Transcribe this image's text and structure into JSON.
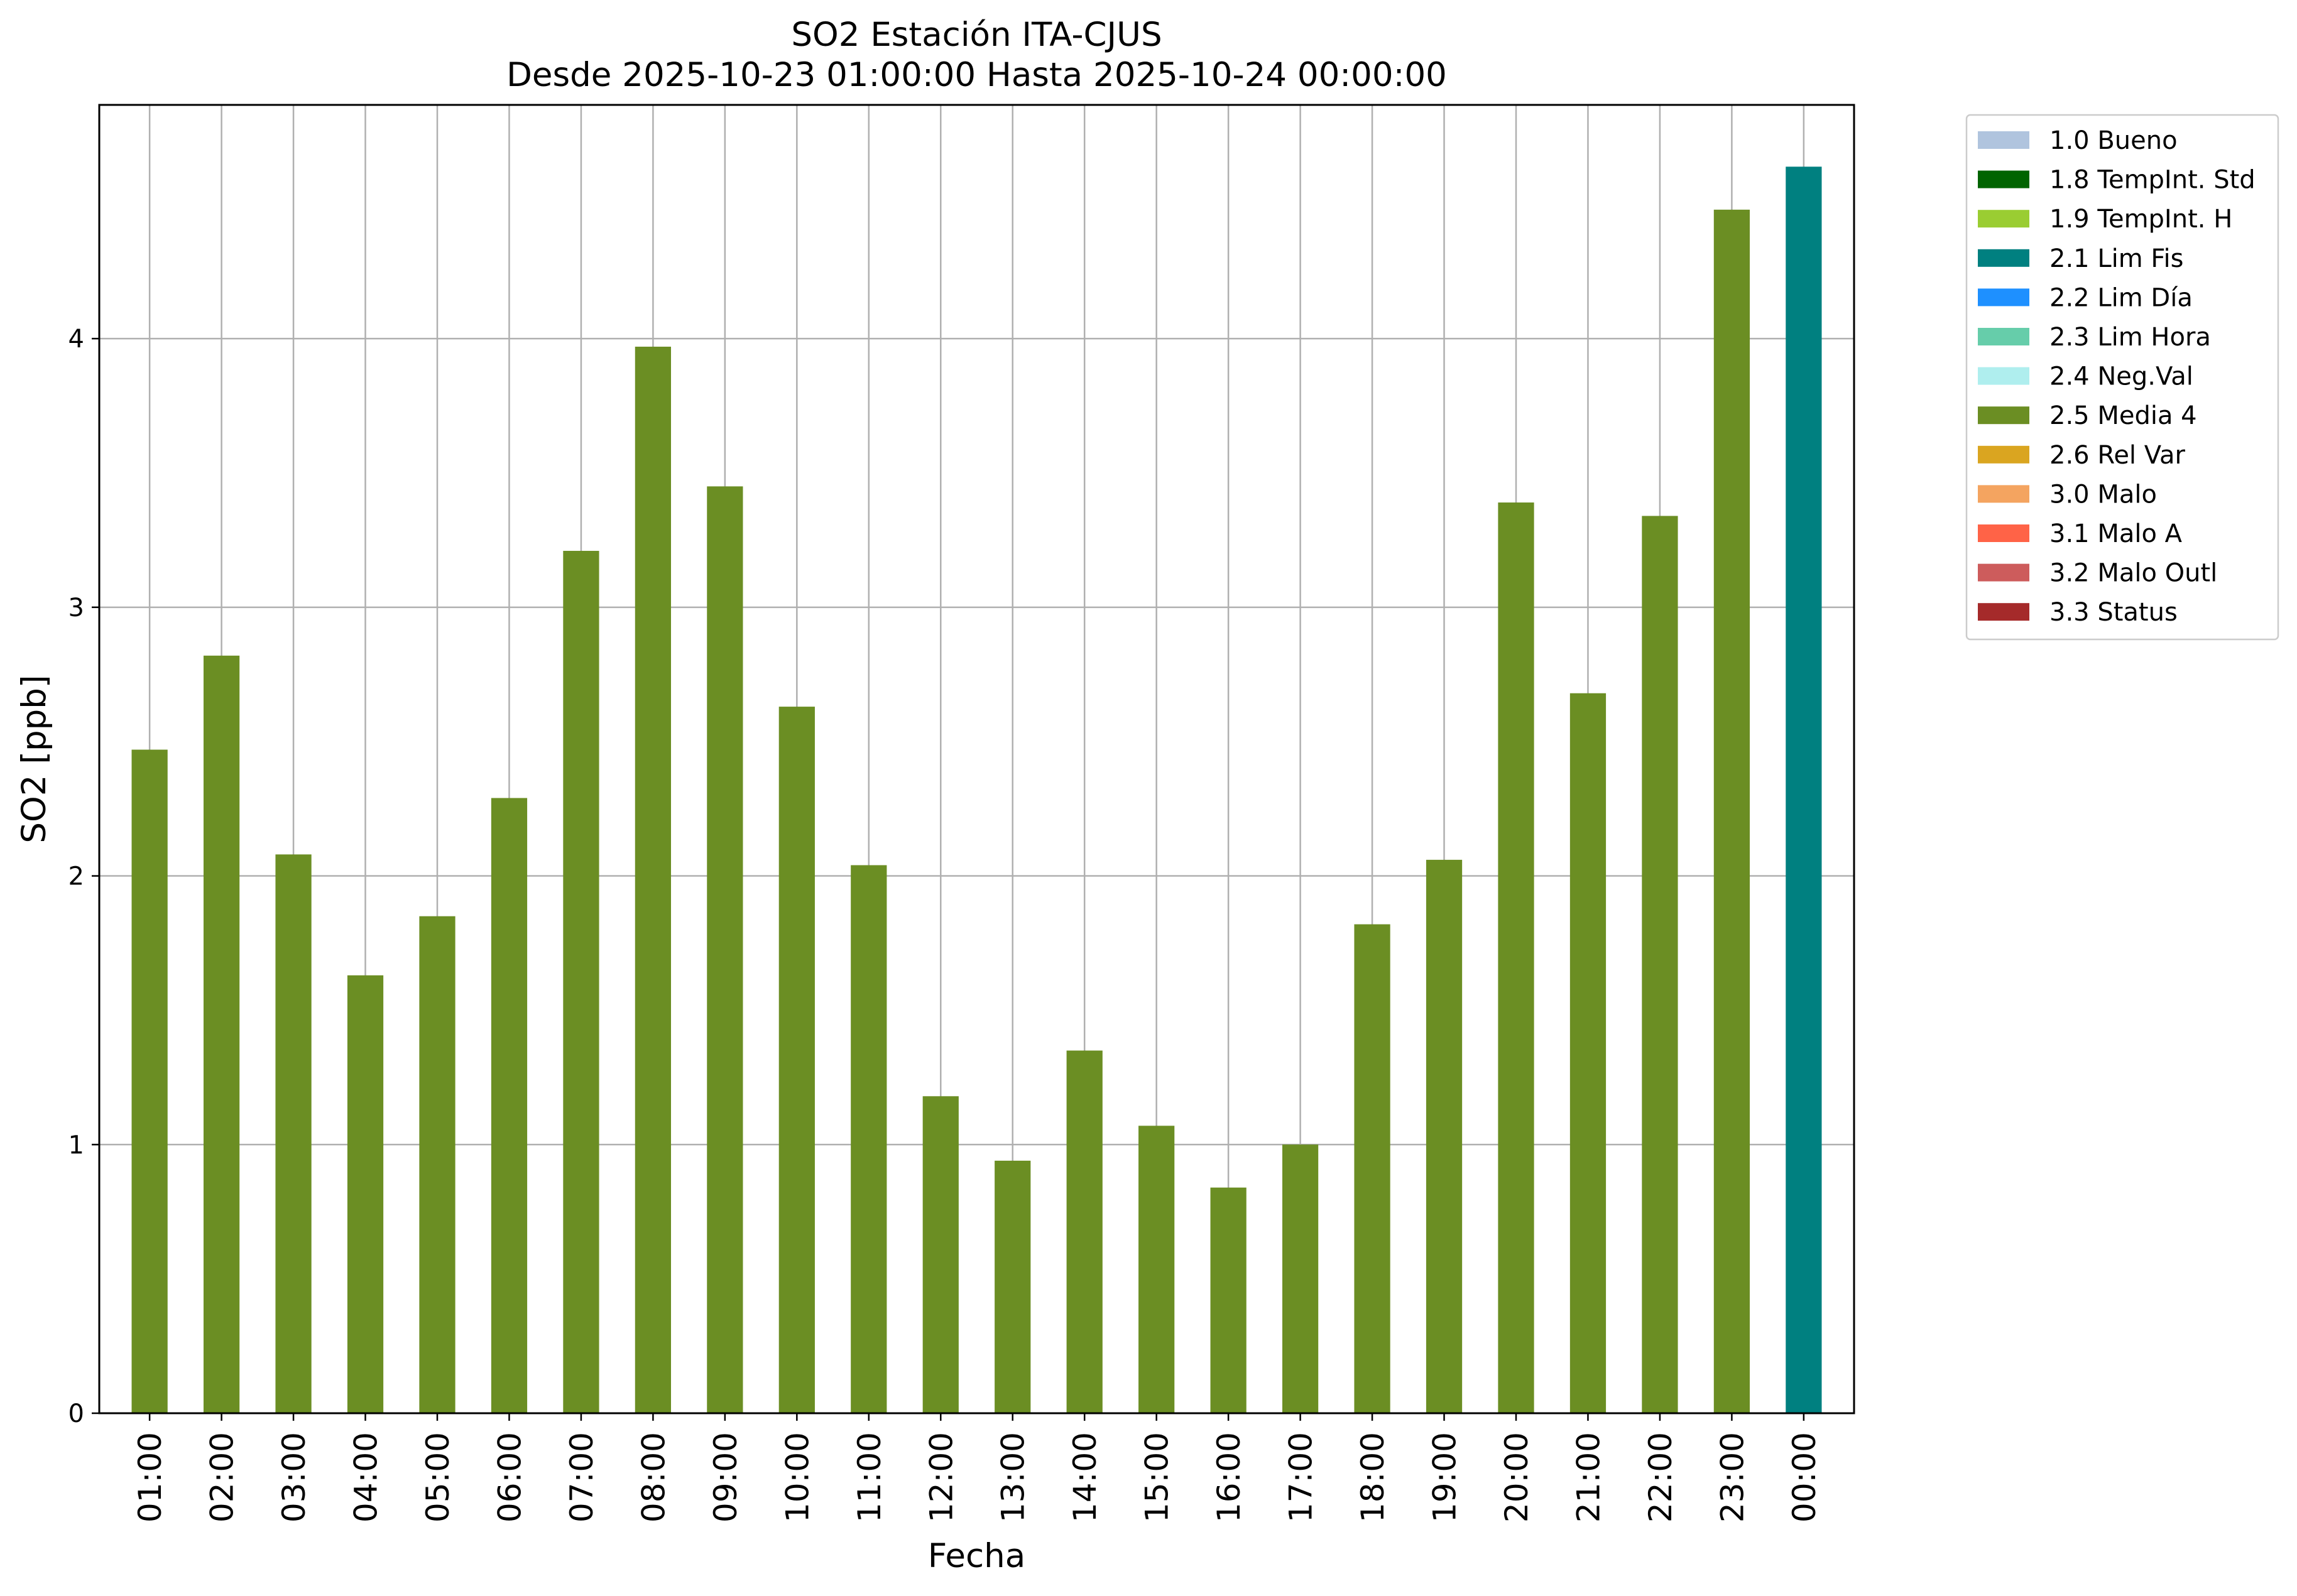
{
  "chart_data": {
    "type": "bar",
    "title": "SO2 Estación ITA-CJUS",
    "subtitle": "Desde 2025-10-23 01:00:00 Hasta 2025-10-24 00:00:00",
    "xlabel": "Fecha",
    "ylabel": "SO2 [ppb]",
    "ylim": [
      0,
      4.87
    ],
    "yticks": [
      "0",
      "1",
      "2",
      "3",
      "4"
    ],
    "grid": true,
    "legend_position": "outside-top-right",
    "categories": [
      "01:00",
      "02:00",
      "03:00",
      "04:00",
      "05:00",
      "06:00",
      "07:00",
      "08:00",
      "09:00",
      "10:00",
      "11:00",
      "12:00",
      "13:00",
      "14:00",
      "15:00",
      "16:00",
      "17:00",
      "18:00",
      "19:00",
      "20:00",
      "21:00",
      "22:00",
      "23:00",
      "00:00"
    ],
    "values": [
      2.47,
      2.82,
      2.08,
      1.63,
      1.85,
      2.29,
      3.21,
      3.97,
      3.45,
      2.63,
      2.04,
      1.18,
      0.94,
      1.35,
      1.07,
      0.84,
      1.0,
      1.82,
      2.06,
      3.39,
      2.68,
      3.34,
      4.48,
      4.64
    ],
    "value_flags": [
      "2.5 Media 4",
      "2.5 Media 4",
      "2.5 Media 4",
      "2.5 Media 4",
      "2.5 Media 4",
      "2.5 Media 4",
      "2.5 Media 4",
      "2.5 Media 4",
      "2.5 Media 4",
      "2.5 Media 4",
      "2.5 Media 4",
      "2.5 Media 4",
      "2.5 Media 4",
      "2.5 Media 4",
      "2.5 Media 4",
      "2.5 Media 4",
      "2.5 Media 4",
      "2.5 Media 4",
      "2.5 Media 4",
      "2.5 Media 4",
      "2.5 Media 4",
      "2.5 Media 4",
      "2.5 Media 4",
      "2.1 Lim Fis"
    ],
    "legend": [
      {
        "label": "1.0 Bueno",
        "color": "#b0c4de"
      },
      {
        "label": "1.8 TempInt. Std",
        "color": "#006400"
      },
      {
        "label": "1.9 TempInt. H",
        "color": "#9acd32"
      },
      {
        "label": "2.1 Lim Fis",
        "color": "#008080"
      },
      {
        "label": "2.2 Lim Día",
        "color": "#1e90ff"
      },
      {
        "label": "2.3 Lim Hora",
        "color": "#66cdaa"
      },
      {
        "label": "2.4 Neg.Val",
        "color": "#afeeee"
      },
      {
        "label": "2.5 Media 4",
        "color": "#6b8e23"
      },
      {
        "label": "2.6 Rel Var",
        "color": "#daa520"
      },
      {
        "label": "3.0 Malo",
        "color": "#f4a460"
      },
      {
        "label": "3.1 Malo A",
        "color": "#ff6347"
      },
      {
        "label": "3.2 Malo Outl",
        "color": "#cd5c5c"
      },
      {
        "label": "3.3 Status",
        "color": "#a52a2a"
      }
    ],
    "grid_color": "#b0b0b0"
  }
}
